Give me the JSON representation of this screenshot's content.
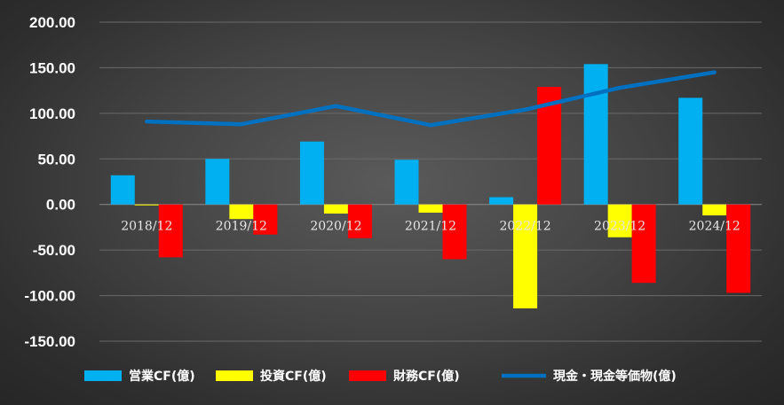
{
  "chart_data": {
    "type": "bar",
    "categories": [
      "2018/12",
      "2019/12",
      "2020/12",
      "2021/12",
      "2022/12",
      "2023/12",
      "2024/12"
    ],
    "series": [
      {
        "name": "営業CF(億)",
        "kind": "bar",
        "color": "#00b0f0",
        "values": [
          32,
          50,
          69,
          49,
          8,
          154,
          117
        ]
      },
      {
        "name": "投資CF(億)",
        "kind": "bar",
        "color": "#ffff00",
        "values": [
          -1,
          -16,
          -10,
          -9,
          -114,
          -36,
          -12
        ]
      },
      {
        "name": "財務CF(億)",
        "kind": "bar",
        "color": "#ff0000",
        "values": [
          -58,
          -33,
          -37,
          -60,
          129,
          -86,
          -97
        ]
      },
      {
        "name": "現金・現金等価物(億)",
        "kind": "line",
        "color": "#0070c0",
        "values": [
          91,
          88,
          108,
          87,
          104,
          128,
          145
        ]
      }
    ],
    "yticks": [
      "200.00",
      "150.00",
      "100.00",
      "50.00",
      "0.00",
      "-50.00",
      "-100.00",
      "-150.00"
    ],
    "ylim": [
      -150,
      200
    ],
    "grid": true,
    "legend": "bottom"
  }
}
